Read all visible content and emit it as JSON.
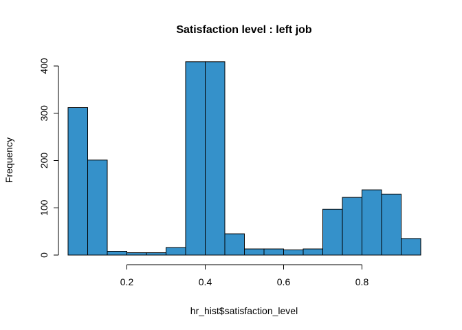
{
  "chart_data": {
    "type": "bar",
    "title": "Satisfaction level : left job",
    "xlabel": "hr_hist$satisfaction_level",
    "ylabel": "Frequency",
    "bin_width": 0.05,
    "bins": [
      {
        "start": 0.05,
        "end": 0.1,
        "count": 312
      },
      {
        "start": 0.1,
        "end": 0.15,
        "count": 201
      },
      {
        "start": 0.15,
        "end": 0.2,
        "count": 8
      },
      {
        "start": 0.2,
        "end": 0.25,
        "count": 5
      },
      {
        "start": 0.25,
        "end": 0.3,
        "count": 5
      },
      {
        "start": 0.3,
        "end": 0.35,
        "count": 16
      },
      {
        "start": 0.35,
        "end": 0.4,
        "count": 409
      },
      {
        "start": 0.4,
        "end": 0.45,
        "count": 409
      },
      {
        "start": 0.45,
        "end": 0.5,
        "count": 45
      },
      {
        "start": 0.5,
        "end": 0.55,
        "count": 13
      },
      {
        "start": 0.55,
        "end": 0.6,
        "count": 13
      },
      {
        "start": 0.6,
        "end": 0.65,
        "count": 11
      },
      {
        "start": 0.65,
        "end": 0.7,
        "count": 13
      },
      {
        "start": 0.7,
        "end": 0.75,
        "count": 97
      },
      {
        "start": 0.75,
        "end": 0.8,
        "count": 122
      },
      {
        "start": 0.8,
        "end": 0.85,
        "count": 138
      },
      {
        "start": 0.85,
        "end": 0.9,
        "count": 129
      },
      {
        "start": 0.9,
        "end": 0.95,
        "count": 35
      }
    ],
    "xlim": [
      0.05,
      0.95
    ],
    "ylim": [
      0,
      420
    ],
    "xticks": [
      0.2,
      0.4,
      0.6,
      0.8
    ],
    "xtick_labels": [
      "0.2",
      "0.4",
      "0.6",
      "0.8"
    ],
    "yticks": [
      0,
      100,
      200,
      300,
      400
    ],
    "ytick_labels": [
      "0",
      "100",
      "200",
      "300",
      "400"
    ],
    "bar_color": "#3591CA",
    "grid": false,
    "legend": "none"
  }
}
